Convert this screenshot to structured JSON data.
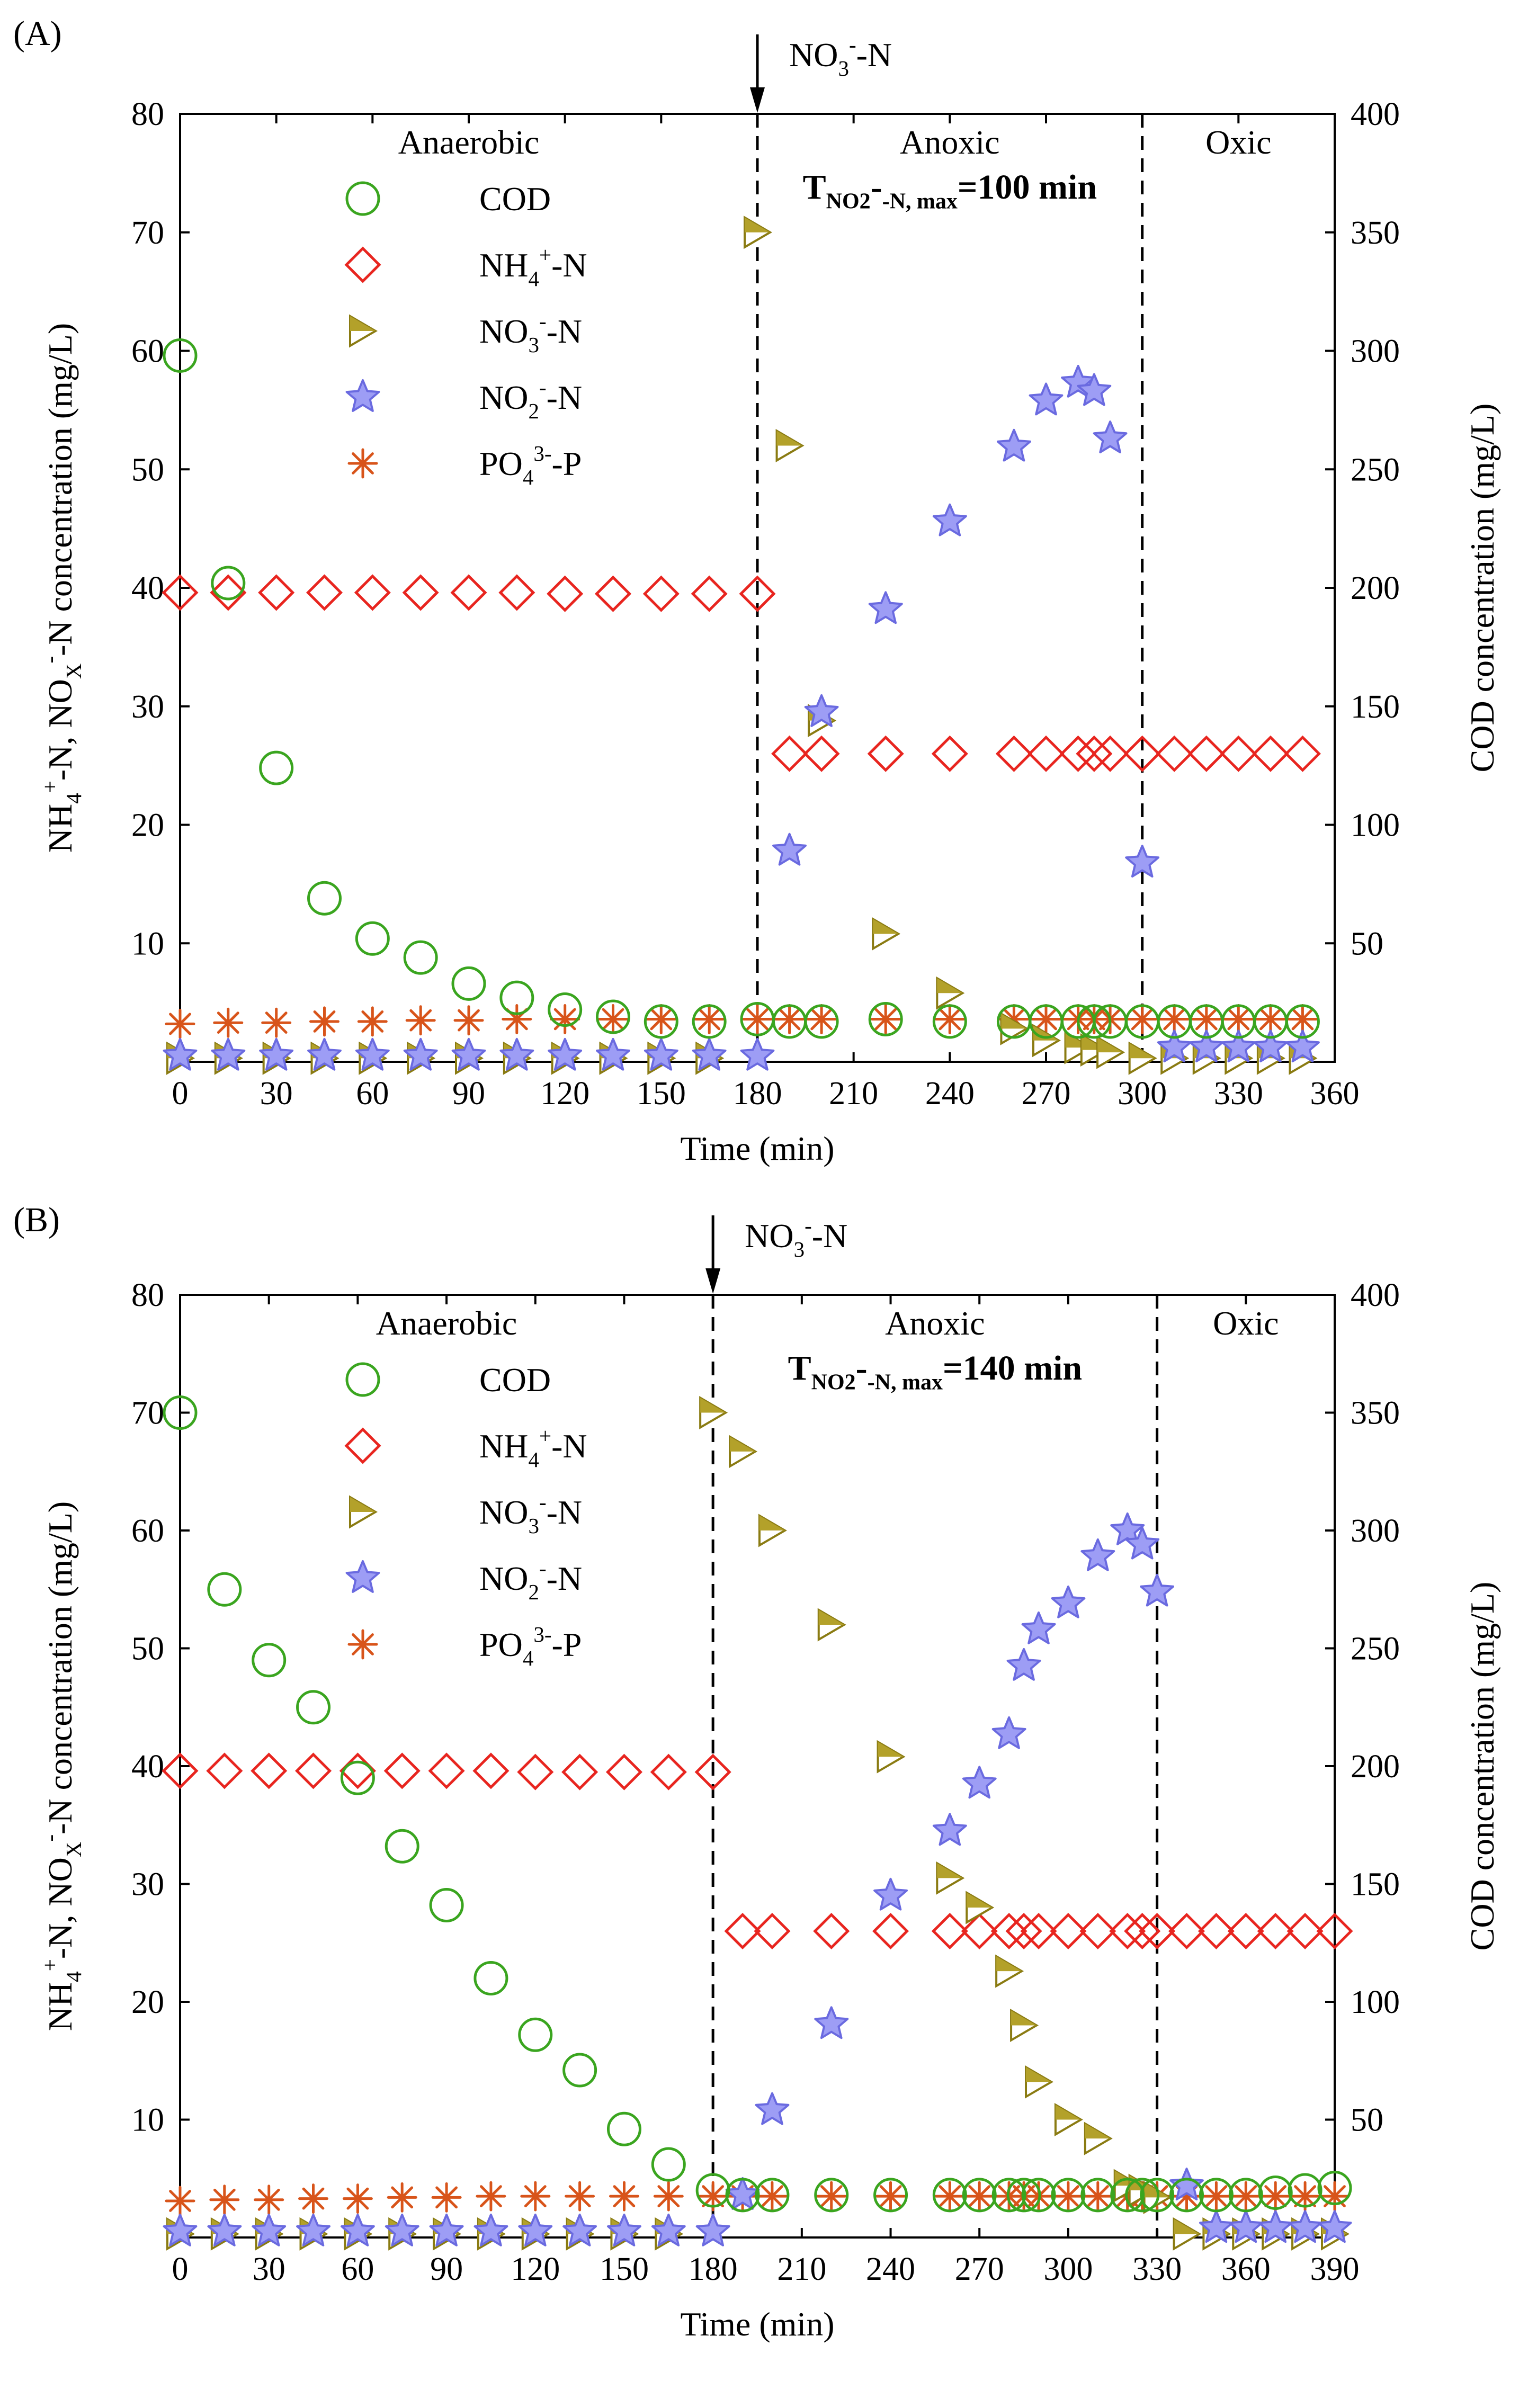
{
  "colors": {
    "cod": "#3aa51f",
    "nh4": "#e8251f",
    "no3_stroke": "#8a7b12",
    "no3_fill": "#b3a12a",
    "no2_stroke": "#6a6ae0",
    "no2_fill": "#9d9df5",
    "po4": "#d8541a",
    "axis": "#000000"
  },
  "chart_data": [
    {
      "type": "scatter",
      "panel_label": "(A)",
      "xlabel": "Time (min)",
      "ylabel_parts": [
        "NH",
        "4",
        "+",
        "-N, NO",
        "X",
        "-",
        "-N concentration (mg/L)"
      ],
      "y2label": "COD concentration (mg/L)",
      "xlim": [
        0,
        360
      ],
      "xticks": [
        0,
        30,
        60,
        90,
        120,
        150,
        180,
        210,
        240,
        270,
        300,
        330,
        360
      ],
      "ylim": [
        0,
        80
      ],
      "yticks": [
        10,
        20,
        30,
        40,
        50,
        60,
        70,
        80
      ],
      "y2lim": [
        0,
        400
      ],
      "y2ticks": [
        50,
        100,
        150,
        200,
        250,
        300,
        350,
        400
      ],
      "phase_boundaries": [
        180,
        300
      ],
      "phases": [
        {
          "label": "Anaerobic",
          "x_center": 90
        },
        {
          "label": "Anoxic",
          "x_center": 240
        },
        {
          "label": "Oxic",
          "x_center": 330
        }
      ],
      "arrow": {
        "x": 180,
        "label_parts": [
          "NO",
          "3",
          "-",
          "-N"
        ]
      },
      "annotation": {
        "x_center": 240,
        "parts": [
          "T",
          "NO",
          "2",
          "-",
          "-N, max",
          "=100 min"
        ]
      },
      "legend": {
        "placement": "upper-left",
        "entries": [
          {
            "key": "COD",
            "parts": [
              "COD"
            ]
          },
          {
            "key": "NH4",
            "parts": [
              "NH",
              "4",
              "+",
              "-N"
            ]
          },
          {
            "key": "NO3",
            "parts": [
              "NO",
              "3",
              "-",
              "-N"
            ]
          },
          {
            "key": "NO2",
            "parts": [
              "NO",
              "2",
              "-",
              "-N"
            ]
          },
          {
            "key": "PO4",
            "parts": [
              "PO",
              "4",
              "3-",
              "-P"
            ]
          }
        ]
      },
      "series": [
        {
          "name": "COD",
          "axis": "right",
          "marker": "circle",
          "x": [
            0,
            15,
            30,
            45,
            60,
            75,
            90,
            105,
            120,
            135,
            150,
            165,
            180,
            190,
            200,
            220,
            240,
            260,
            270,
            280,
            285,
            290,
            300,
            310,
            320,
            330,
            340,
            350
          ],
          "y": [
            298,
            202,
            124,
            69,
            52,
            44,
            33,
            27,
            22,
            19,
            17,
            17,
            18,
            17,
            17,
            18,
            17,
            17,
            17,
            17,
            17,
            17,
            17,
            17,
            17,
            17,
            17,
            17
          ]
        },
        {
          "name": "NH4+-N",
          "axis": "left",
          "marker": "diamond",
          "x": [
            0,
            15,
            30,
            45,
            60,
            75,
            90,
            105,
            120,
            135,
            150,
            165,
            180,
            190,
            200,
            220,
            240,
            260,
            270,
            280,
            285,
            290,
            300,
            310,
            320,
            330,
            340,
            350
          ],
          "y": [
            39.6,
            39.6,
            39.6,
            39.6,
            39.6,
            39.6,
            39.6,
            39.6,
            39.5,
            39.5,
            39.5,
            39.5,
            39.5,
            26,
            26,
            26,
            26,
            26,
            26,
            26,
            26,
            26,
            26,
            26,
            26,
            26,
            26,
            26
          ]
        },
        {
          "name": "NO3--N",
          "axis": "left",
          "marker": "triangle",
          "x": [
            0,
            15,
            30,
            45,
            60,
            75,
            90,
            105,
            120,
            135,
            150,
            165,
            180,
            190,
            200,
            220,
            240,
            260,
            270,
            280,
            285,
            290,
            300,
            310,
            320,
            330,
            340,
            350
          ],
          "y": [
            0.3,
            0.3,
            0.3,
            0.3,
            0.3,
            0.3,
            0.3,
            0.3,
            0.3,
            0.3,
            0.3,
            0.3,
            70,
            52,
            28.8,
            10.8,
            5.8,
            2.8,
            1.8,
            1.2,
            1,
            0.8,
            0.3,
            0.3,
            0.3,
            0.3,
            0.3,
            0.3
          ]
        },
        {
          "name": "NO2--N",
          "axis": "left",
          "marker": "star",
          "x": [
            0,
            15,
            30,
            45,
            60,
            75,
            90,
            105,
            120,
            135,
            150,
            165,
            180,
            190,
            200,
            220,
            240,
            260,
            270,
            280,
            285,
            290,
            300,
            310,
            320,
            330,
            340,
            350
          ],
          "y": [
            0.5,
            0.5,
            0.5,
            0.5,
            0.5,
            0.5,
            0.5,
            0.5,
            0.5,
            0.5,
            0.5,
            0.5,
            0.5,
            17.8,
            29.5,
            38.2,
            45.6,
            51.9,
            55.8,
            57.3,
            56.6,
            52.6,
            16.8,
            1.2,
            1.2,
            1.2,
            1.2,
            1.2
          ]
        },
        {
          "name": "PO43--P",
          "axis": "left",
          "marker": "asterisk",
          "x": [
            0,
            15,
            30,
            45,
            60,
            75,
            90,
            105,
            120,
            135,
            150,
            165,
            180,
            190,
            200,
            220,
            240,
            260,
            270,
            280,
            285,
            290,
            300,
            310,
            320,
            330,
            340,
            350
          ],
          "y": [
            3.2,
            3.3,
            3.3,
            3.4,
            3.4,
            3.5,
            3.5,
            3.6,
            3.6,
            3.6,
            3.6,
            3.6,
            3.6,
            3.6,
            3.6,
            3.6,
            3.6,
            3.6,
            3.6,
            3.6,
            3.6,
            3.6,
            3.6,
            3.6,
            3.6,
            3.6,
            3.6,
            3.6
          ]
        }
      ]
    },
    {
      "type": "scatter",
      "panel_label": "(B)",
      "xlabel": "Time (min)",
      "ylabel_parts": [
        "NH",
        "4",
        "+",
        "-N, NO",
        "X",
        "-",
        "-N concentration (mg/L)"
      ],
      "y2label": "COD concentration (mg/L)",
      "xlim": [
        0,
        390
      ],
      "xticks": [
        0,
        30,
        60,
        90,
        120,
        150,
        180,
        210,
        240,
        270,
        300,
        330,
        360,
        390
      ],
      "ylim": [
        0,
        80
      ],
      "yticks": [
        10,
        20,
        30,
        40,
        50,
        60,
        70,
        80
      ],
      "y2lim": [
        0,
        400
      ],
      "y2ticks": [
        50,
        100,
        150,
        200,
        250,
        300,
        350,
        400
      ],
      "phase_boundaries": [
        180,
        330
      ],
      "phases": [
        {
          "label": "Anaerobic",
          "x_center": 90
        },
        {
          "label": "Anoxic",
          "x_center": 255
        },
        {
          "label": "Oxic",
          "x_center": 360
        }
      ],
      "arrow": {
        "x": 180,
        "label_parts": [
          "NO",
          "3",
          "-",
          "-N"
        ]
      },
      "annotation": {
        "x_center": 255,
        "parts": [
          "T",
          "NO",
          "2",
          "-",
          "-N, max",
          "=140 min"
        ]
      },
      "legend": {
        "placement": "upper-left",
        "entries": [
          {
            "key": "COD",
            "parts": [
              "COD"
            ]
          },
          {
            "key": "NH4",
            "parts": [
              "NH",
              "4",
              "+",
              "-N"
            ]
          },
          {
            "key": "NO3",
            "parts": [
              "NO",
              "3",
              "-",
              "-N"
            ]
          },
          {
            "key": "NO2",
            "parts": [
              "NO",
              "2",
              "-",
              "-N"
            ]
          },
          {
            "key": "PO4",
            "parts": [
              "PO",
              "4",
              "3-",
              "-P"
            ]
          }
        ]
      },
      "series": [
        {
          "name": "COD",
          "axis": "right",
          "marker": "circle",
          "x": [
            0,
            15,
            30,
            45,
            60,
            75,
            90,
            105,
            120,
            135,
            150,
            165,
            180,
            190,
            200,
            220,
            240,
            260,
            270,
            280,
            285,
            290,
            300,
            310,
            320,
            325,
            330,
            340,
            350,
            360,
            370,
            380,
            390
          ],
          "y": [
            350,
            275,
            245,
            225,
            195,
            166,
            141,
            110,
            86,
            71,
            46,
            31,
            20,
            18,
            18,
            18,
            18,
            18,
            18,
            18,
            18,
            18,
            18,
            18,
            18,
            18,
            18,
            18,
            18,
            18,
            19,
            20,
            21
          ]
        },
        {
          "name": "NH4+-N",
          "axis": "left",
          "marker": "diamond",
          "x": [
            0,
            15,
            30,
            45,
            60,
            75,
            90,
            105,
            120,
            135,
            150,
            165,
            180,
            190,
            200,
            220,
            240,
            260,
            270,
            280,
            285,
            290,
            300,
            310,
            320,
            325,
            330,
            340,
            350,
            360,
            370,
            380,
            390
          ],
          "y": [
            39.6,
            39.6,
            39.6,
            39.6,
            39.6,
            39.6,
            39.6,
            39.6,
            39.5,
            39.5,
            39.5,
            39.5,
            39.5,
            26,
            26,
            26,
            26,
            26,
            26,
            26,
            26,
            26,
            26,
            26,
            26,
            26,
            26,
            26,
            26,
            26,
            26,
            26,
            26
          ]
        },
        {
          "name": "NO3--N",
          "axis": "left",
          "marker": "triangle",
          "x": [
            0,
            15,
            30,
            45,
            60,
            75,
            90,
            105,
            120,
            135,
            150,
            165,
            180,
            190,
            200,
            220,
            240,
            260,
            270,
            280,
            285,
            290,
            300,
            310,
            320,
            325,
            330,
            340,
            350,
            360,
            370,
            380,
            390
          ],
          "y": [
            0.3,
            0.3,
            0.3,
            0.3,
            0.3,
            0.3,
            0.3,
            0.3,
            0.3,
            0.3,
            0.3,
            0.3,
            70,
            66.7,
            60,
            52,
            40.8,
            30.5,
            28,
            22.6,
            18,
            13.2,
            10,
            8.4,
            4.4,
            4,
            3.4,
            0.3,
            0.3,
            0.3,
            0.3,
            0.3,
            0.3
          ]
        },
        {
          "name": "NO2--N",
          "axis": "left",
          "marker": "star",
          "x": [
            0,
            15,
            30,
            45,
            60,
            75,
            90,
            105,
            120,
            135,
            150,
            165,
            180,
            190,
            200,
            220,
            240,
            260,
            270,
            280,
            285,
            290,
            300,
            310,
            320,
            325,
            330,
            340,
            350,
            360,
            370,
            380,
            390
          ],
          "y": [
            0.5,
            0.5,
            0.5,
            0.5,
            0.5,
            0.5,
            0.5,
            0.5,
            0.5,
            0.5,
            0.5,
            0.5,
            0.5,
            3.6,
            10.8,
            18.1,
            29,
            34.5,
            38.5,
            42.7,
            48.5,
            51.6,
            53.8,
            57.8,
            60,
            58.8,
            54.8,
            4.4,
            0.8,
            0.8,
            0.8,
            0.8,
            0.8
          ]
        },
        {
          "name": "PO43--P",
          "axis": "left",
          "marker": "asterisk",
          "x": [
            0,
            15,
            30,
            45,
            60,
            75,
            90,
            105,
            120,
            135,
            150,
            165,
            180,
            190,
            200,
            220,
            240,
            260,
            270,
            280,
            285,
            290,
            300,
            310,
            320,
            325,
            330,
            340,
            350,
            360,
            370,
            380,
            390
          ],
          "y": [
            3.1,
            3.2,
            3.2,
            3.3,
            3.3,
            3.4,
            3.4,
            3.5,
            3.5,
            3.5,
            3.5,
            3.5,
            3.5,
            3.5,
            3.5,
            3.5,
            3.5,
            3.5,
            3.5,
            3.5,
            3.5,
            3.5,
            3.5,
            3.5,
            3.5,
            3.5,
            3.5,
            3.5,
            3.5,
            3.5,
            3.5,
            3.5,
            3.5
          ]
        }
      ]
    }
  ]
}
